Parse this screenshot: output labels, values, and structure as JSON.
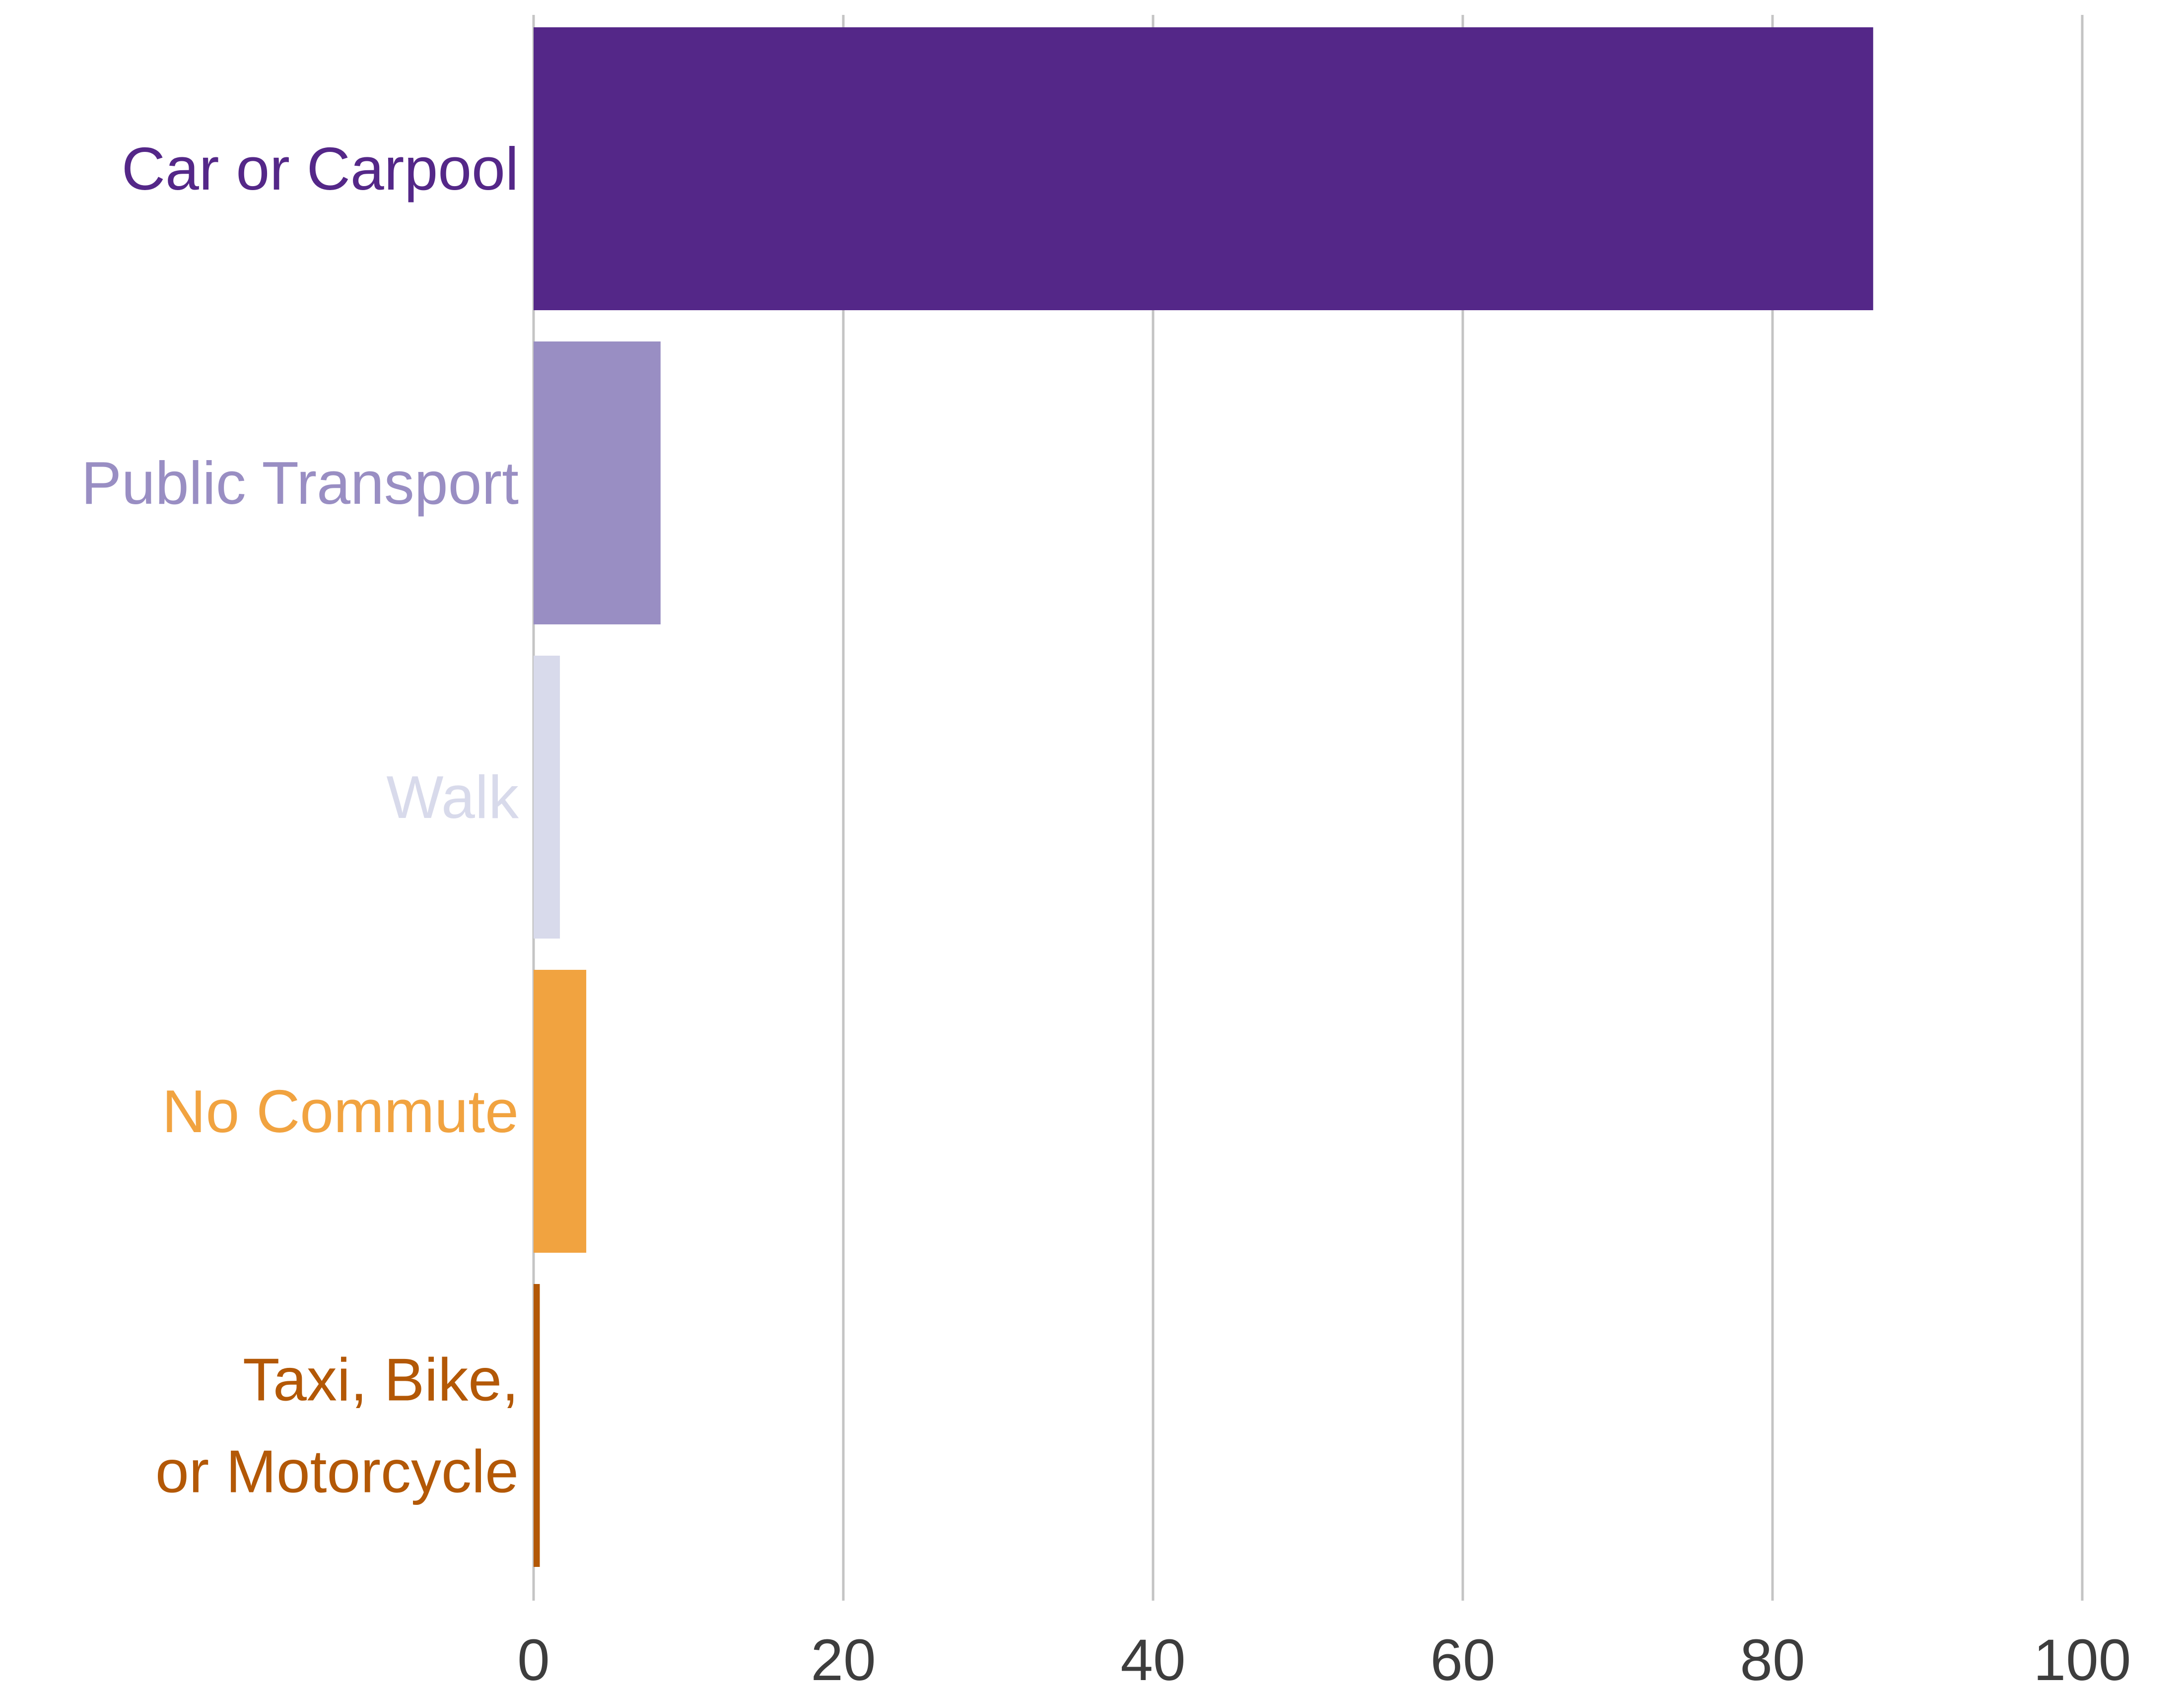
{
  "chart_data": {
    "type": "bar",
    "orientation": "horizontal",
    "title": "",
    "xlabel": "",
    "ylabel": "",
    "categories": [
      {
        "label_lines": [
          "Car or Carpool"
        ],
        "value": 86.5,
        "color": "#542788"
      },
      {
        "label_lines": [
          "Public Transport"
        ],
        "value": 8.2,
        "color": "#998ec3"
      },
      {
        "label_lines": [
          "Walk"
        ],
        "value": 1.7,
        "color": "#d8daeb"
      },
      {
        "label_lines": [
          "No Commute"
        ],
        "value": 3.4,
        "color": "#f1a340"
      },
      {
        "label_lines": [
          "Taxi, Bike,",
          "or Motorcycle"
        ],
        "value": 0.4,
        "color": "#b35806"
      }
    ],
    "xlim": [
      0,
      100
    ],
    "xticks": [
      0,
      20,
      40,
      60,
      80,
      100
    ],
    "grid": "vertical",
    "legend": "none",
    "colors": {
      "gridline": "#c4c4c4",
      "tick_text": "#3d3d3d",
      "background": "#ffffff"
    }
  }
}
